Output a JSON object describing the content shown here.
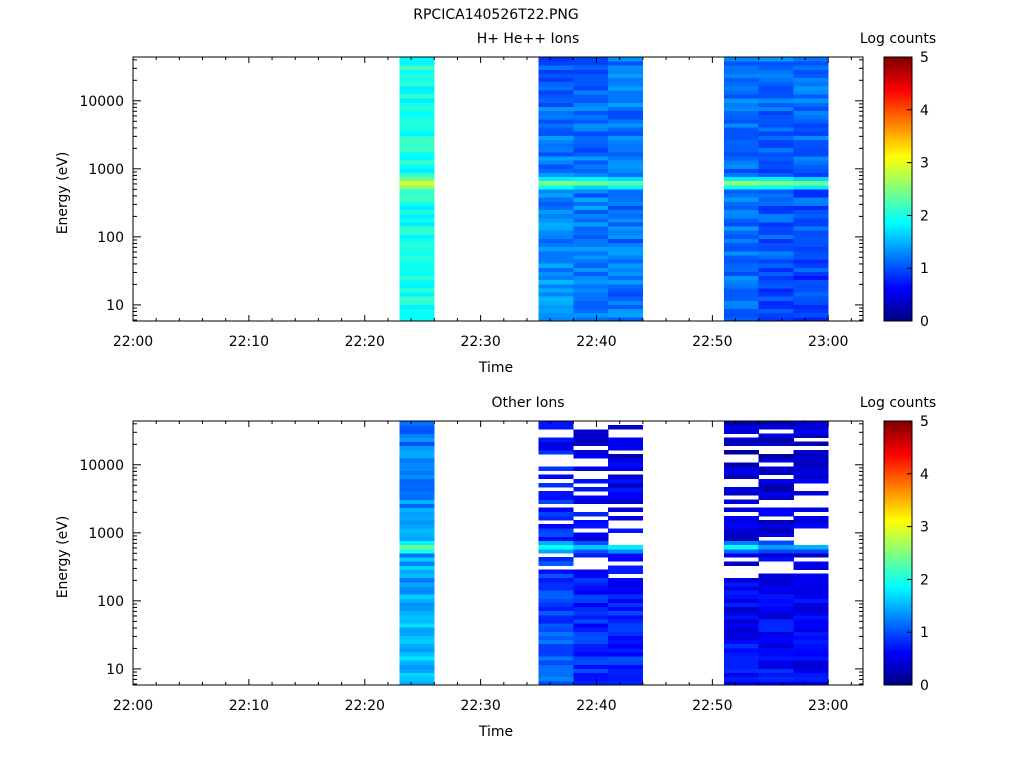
{
  "figure_title": "RPCICA140526T22.PNG",
  "chart_data": [
    {
      "type": "heatmap",
      "title": "H+ He++ Ions",
      "xlabel": "Time",
      "ylabel": "Energy (eV)",
      "x_ticks": [
        "22:00",
        "22:10",
        "22:20",
        "22:30",
        "22:40",
        "22:50",
        "23:00"
      ],
      "y_ticks": [
        "10",
        "100",
        "1000",
        "10000"
      ],
      "y_scale": "log",
      "x_range": [
        "22:00",
        "23:03"
      ],
      "y_range": [
        5.8,
        44000
      ],
      "colorbar": {
        "label": "Log counts",
        "ticks": [
          "0",
          "1",
          "2",
          "3",
          "4",
          "5"
        ],
        "range": [
          0,
          5
        ],
        "colormap": "jet"
      },
      "columns": [
        {
          "start": "22:23",
          "end": "22:26",
          "low_value": 2.0,
          "high_value": 2.0,
          "peak_energy": 640,
          "peak_value": 2.9,
          "gaps": 0,
          "seed": 11
        },
        {
          "start": "22:35",
          "end": "22:38",
          "low_value": 1.4,
          "high_value": 1.1,
          "peak_energy": 640,
          "peak_value": 2.5,
          "gaps": 0,
          "seed": 23
        },
        {
          "start": "22:38",
          "end": "22:41",
          "low_value": 1.3,
          "high_value": 1.1,
          "peak_energy": 640,
          "peak_value": 2.4,
          "gaps": 0,
          "seed": 37
        },
        {
          "start": "22:41",
          "end": "22:44",
          "low_value": 1.2,
          "high_value": 1.2,
          "peak_energy": 640,
          "peak_value": 2.3,
          "gaps": 0,
          "seed": 41
        },
        {
          "start": "22:51",
          "end": "22:54",
          "low_value": 1.2,
          "high_value": 1.2,
          "peak_energy": 640,
          "peak_value": 2.6,
          "gaps": 0,
          "seed": 53
        },
        {
          "start": "22:54",
          "end": "22:57",
          "low_value": 1.0,
          "high_value": 1.2,
          "peak_energy": 640,
          "peak_value": 2.5,
          "gaps": 0,
          "seed": 67
        },
        {
          "start": "22:57",
          "end": "23:00",
          "low_value": 0.9,
          "high_value": 1.2,
          "peak_energy": 640,
          "peak_value": 2.4,
          "gaps": 0,
          "seed": 71
        }
      ]
    },
    {
      "type": "heatmap",
      "title": "Other Ions",
      "xlabel": "Time",
      "ylabel": "Energy (eV)",
      "x_ticks": [
        "22:00",
        "22:10",
        "22:20",
        "22:30",
        "22:40",
        "22:50",
        "23:00"
      ],
      "y_ticks": [
        "10",
        "100",
        "1000",
        "10000"
      ],
      "y_scale": "log",
      "x_range": [
        "22:00",
        "23:03"
      ],
      "y_range": [
        5.8,
        44000
      ],
      "colorbar": {
        "label": "Log counts",
        "ticks": [
          "0",
          "1",
          "2",
          "3",
          "4",
          "5"
        ],
        "range": [
          0,
          5
        ],
        "colormap": "jet"
      },
      "columns": [
        {
          "start": "22:23",
          "end": "22:26",
          "low_value": 1.6,
          "high_value": 1.2,
          "peak_energy": 640,
          "peak_value": 2.4,
          "gaps": 0,
          "seed": 13
        },
        {
          "start": "22:35",
          "end": "22:38",
          "low_value": 1.1,
          "high_value": 0.6,
          "peak_energy": 640,
          "peak_value": 1.9,
          "gaps": 0.35,
          "seed": 29
        },
        {
          "start": "22:38",
          "end": "22:41",
          "low_value": 0.9,
          "high_value": 0.4,
          "peak_energy": 640,
          "peak_value": 1.6,
          "gaps": 0.4,
          "seed": 31
        },
        {
          "start": "22:41",
          "end": "22:44",
          "low_value": 0.9,
          "high_value": 0.4,
          "peak_energy": 640,
          "peak_value": 1.8,
          "gaps": 0.35,
          "seed": 43
        },
        {
          "start": "22:51",
          "end": "22:54",
          "low_value": 0.7,
          "high_value": 0.3,
          "peak_energy": 640,
          "peak_value": 1.9,
          "gaps": 0.3,
          "seed": 59
        },
        {
          "start": "22:54",
          "end": "22:57",
          "low_value": 0.7,
          "high_value": 0.3,
          "peak_energy": 640,
          "peak_value": 1.4,
          "gaps": 0.35,
          "seed": 61
        },
        {
          "start": "22:57",
          "end": "23:00",
          "low_value": 0.6,
          "high_value": 0.4,
          "peak_energy": 640,
          "peak_value": 1.5,
          "gaps": 0.35,
          "seed": 73
        }
      ]
    }
  ]
}
